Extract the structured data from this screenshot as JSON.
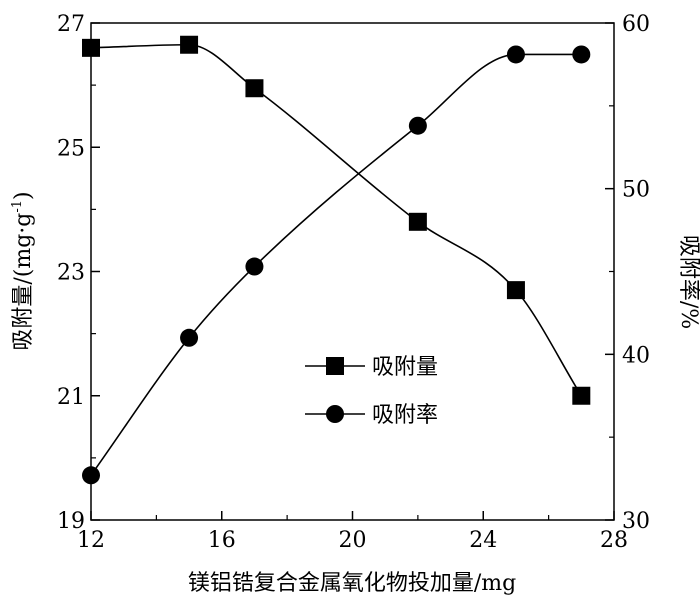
{
  "chart_data": {
    "type": "line",
    "x_axis": {
      "label": "镁铝锆复合金属氧化物投加量/mg",
      "range": [
        12,
        28
      ],
      "ticks": [
        "12",
        "16",
        "20",
        "24",
        "28"
      ]
    },
    "y_left_axis": {
      "label": "吸附量/(mg·g",
      "label_superscript": "-1",
      "label_suffix": ")",
      "range": [
        19,
        27
      ],
      "ticks": [
        "19",
        "21",
        "23",
        "25",
        "27"
      ]
    },
    "y_right_axis": {
      "label": "吸附率/%",
      "range": [
        30,
        60
      ],
      "ticks": [
        "30",
        "40",
        "50",
        "60"
      ]
    },
    "series": [
      {
        "name": "吸附量",
        "axis": "left",
        "marker": "square",
        "x": [
          12,
          15,
          17,
          22,
          25,
          27
        ],
        "y": [
          26.6,
          26.65,
          25.95,
          23.8,
          22.7,
          21.0
        ]
      },
      {
        "name": "吸附率",
        "axis": "right",
        "marker": "circle",
        "x": [
          12,
          15,
          17,
          22,
          25,
          27
        ],
        "y": [
          32.7,
          41.0,
          45.3,
          53.8,
          58.1,
          58.1
        ]
      }
    ],
    "legend": {
      "placement": "center",
      "entries": [
        "吸附量",
        "吸附率"
      ]
    },
    "grid": false
  }
}
